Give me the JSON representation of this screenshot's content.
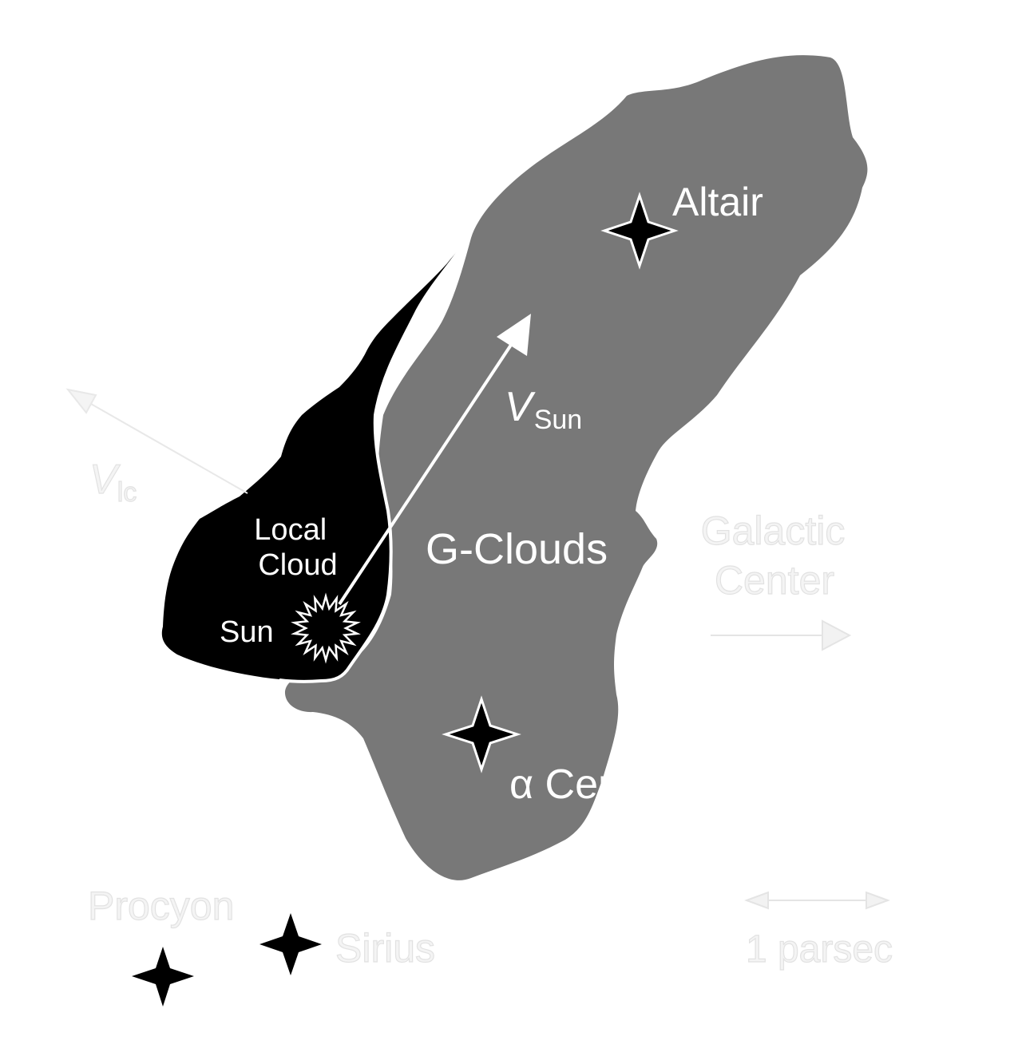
{
  "labels": {
    "altair": "Altair",
    "v_sun_main": "V",
    "v_sun_sub": "Sun",
    "v_lic_main": "V",
    "v_lic_sub": "lc",
    "local_cloud_line1": "Local",
    "local_cloud_line2": "Cloud",
    "sun": "Sun",
    "g_clouds": "G-Clouds",
    "galactic_center_line1": "Galactic",
    "galactic_center_line2": "Center",
    "alpha_centauri": "α Centauri",
    "procyon": "Procyon",
    "sirius": "Sirius",
    "scale": "1 parsec"
  },
  "colors": {
    "g_clouds": "#787878",
    "local_cloud": "#000000",
    "text": "#ffffff",
    "background": "#ffffff"
  }
}
